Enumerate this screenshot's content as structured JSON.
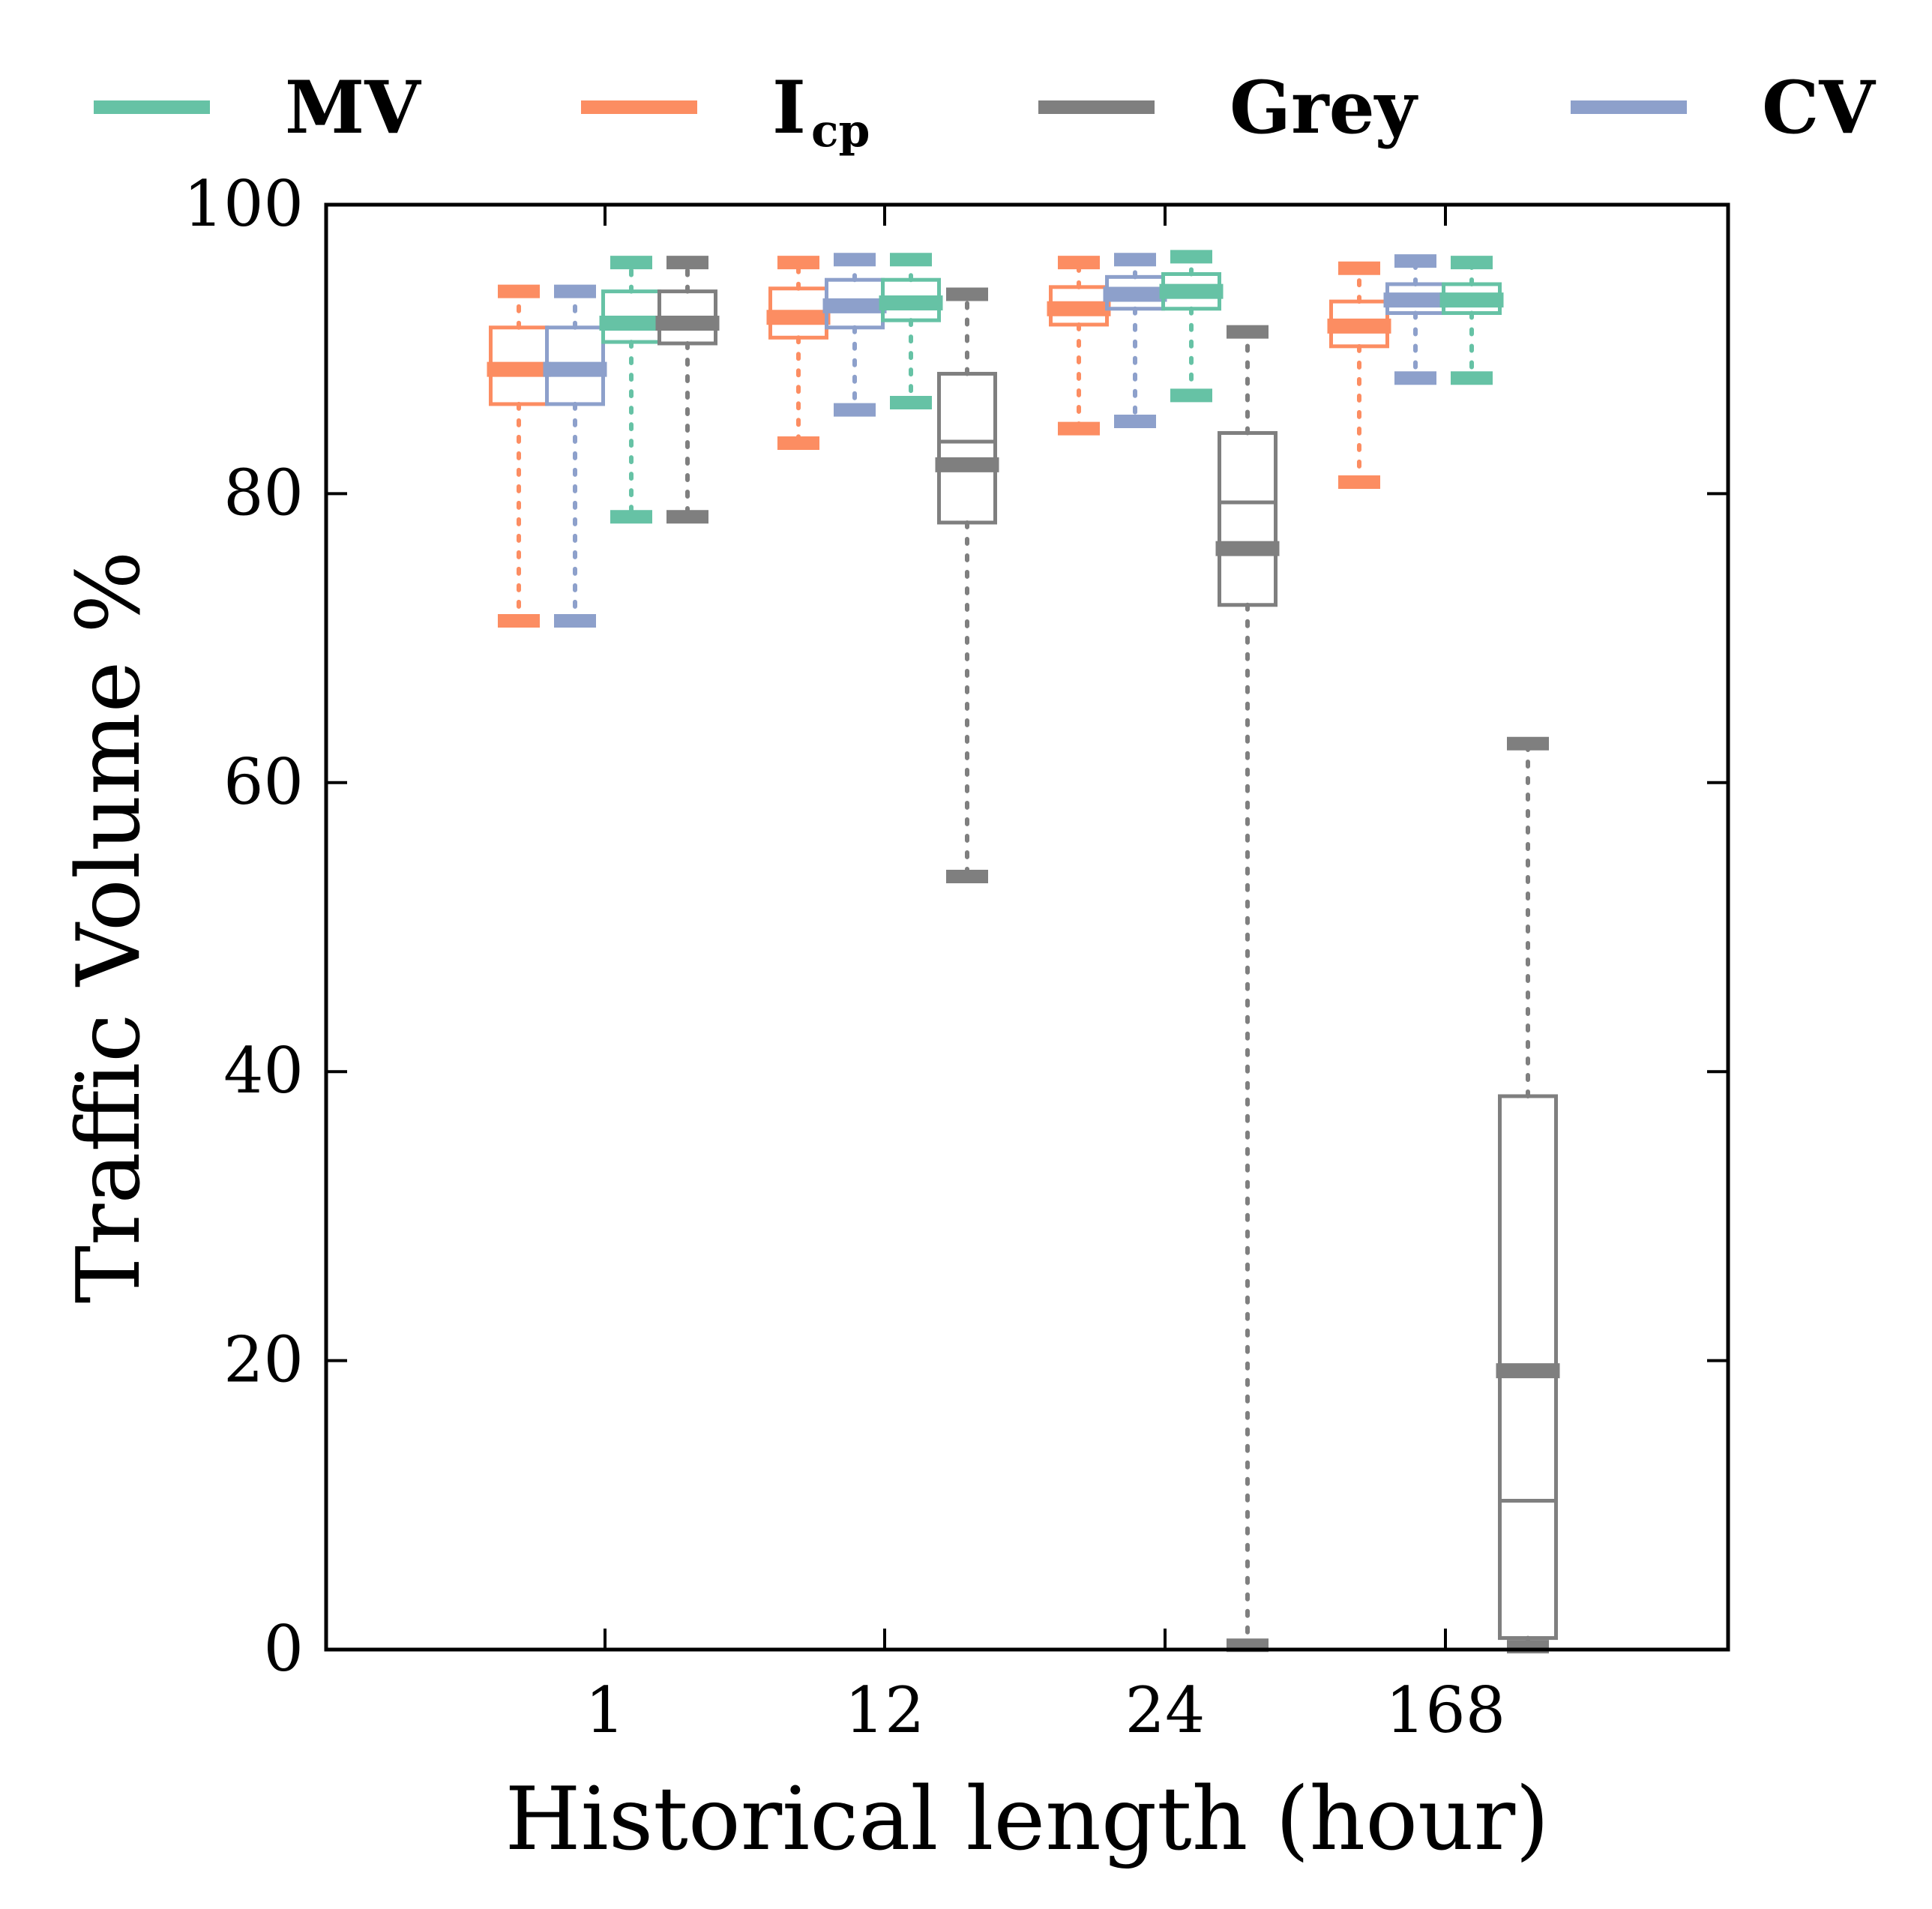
{
  "chart_data": {
    "type": "box",
    "xlabel": "Historical length (hour)",
    "ylabel": "Traffic Volume %",
    "ylim": [
      0,
      100
    ],
    "yticks": [
      "0",
      "20",
      "40",
      "60",
      "80",
      "100"
    ],
    "categories": [
      "1",
      "12",
      "24",
      "168"
    ],
    "grid": false,
    "legend": {
      "placement": "top",
      "entries": [
        {
          "series": "MV",
          "label": "MV",
          "sub": ""
        },
        {
          "series": "Icp",
          "label": "I",
          "sub": "cp"
        },
        {
          "series": "Grey",
          "label": "Grey",
          "sub": ""
        },
        {
          "series": "CV",
          "label": "CV",
          "sub": ""
        }
      ]
    },
    "series": [
      {
        "name": "Icp",
        "color": "#fc8d62",
        "boxes": [
          {
            "whisker_low": 71.2,
            "q1": 86.2,
            "median": 88.6,
            "mean": 88.6,
            "q3": 91.5,
            "whisker_high": 94.0
          },
          {
            "whisker_low": 83.5,
            "q1": 90.8,
            "median": 92.2,
            "mean": 92.2,
            "q3": 94.2,
            "whisker_high": 96.0
          },
          {
            "whisker_low": 84.5,
            "q1": 91.7,
            "median": 92.8,
            "mean": 92.8,
            "q3": 94.3,
            "whisker_high": 96.0
          },
          {
            "whisker_low": 80.8,
            "q1": 90.2,
            "median": 91.6,
            "mean": 91.6,
            "q3": 93.3,
            "whisker_high": 95.6
          }
        ]
      },
      {
        "name": "CV",
        "color": "#8da0cb",
        "boxes": [
          {
            "whisker_low": 71.2,
            "q1": 86.2,
            "median": 88.6,
            "mean": 88.6,
            "q3": 91.5,
            "whisker_high": 94.0
          },
          {
            "whisker_low": 85.8,
            "q1": 91.5,
            "median": 93.0,
            "mean": 93.0,
            "q3": 94.8,
            "whisker_high": 96.2
          },
          {
            "whisker_low": 85.0,
            "q1": 92.8,
            "median": 93.8,
            "mean": 93.8,
            "q3": 95.0,
            "whisker_high": 96.2
          },
          {
            "whisker_low": 88.0,
            "q1": 92.5,
            "median": 93.4,
            "mean": 93.4,
            "q3": 94.5,
            "whisker_high": 96.1
          }
        ]
      },
      {
        "name": "MV",
        "color": "#66c2a5",
        "boxes": [
          {
            "whisker_low": 78.4,
            "q1": 90.5,
            "median": 91.8,
            "mean": 91.8,
            "q3": 94.0,
            "whisker_high": 96.0
          },
          {
            "whisker_low": 86.3,
            "q1": 92.0,
            "median": 93.2,
            "mean": 93.2,
            "q3": 94.8,
            "whisker_high": 96.2
          },
          {
            "whisker_low": 86.8,
            "q1": 92.8,
            "median": 94.0,
            "mean": 94.0,
            "q3": 95.2,
            "whisker_high": 96.4
          },
          {
            "whisker_low": 88.0,
            "q1": 92.5,
            "median": 93.4,
            "mean": 93.4,
            "q3": 94.5,
            "whisker_high": 96.0
          }
        ]
      },
      {
        "name": "Grey",
        "color": "#7f7f7f",
        "boxes": [
          {
            "whisker_low": 78.4,
            "q1": 90.4,
            "median": 91.8,
            "mean": 91.8,
            "q3": 94.0,
            "whisker_high": 96.0
          },
          {
            "whisker_low": 53.5,
            "q1": 78.0,
            "median": 83.6,
            "mean": 82.0,
            "q3": 88.3,
            "whisker_high": 93.8
          },
          {
            "whisker_low": 0.3,
            "q1": 72.3,
            "median": 79.4,
            "mean": 76.2,
            "q3": 84.2,
            "whisker_high": 91.2
          },
          {
            "whisker_low": 0.2,
            "q1": 0.8,
            "median": 10.3,
            "mean": 19.3,
            "q3": 38.3,
            "whisker_high": 62.7
          }
        ]
      }
    ]
  }
}
